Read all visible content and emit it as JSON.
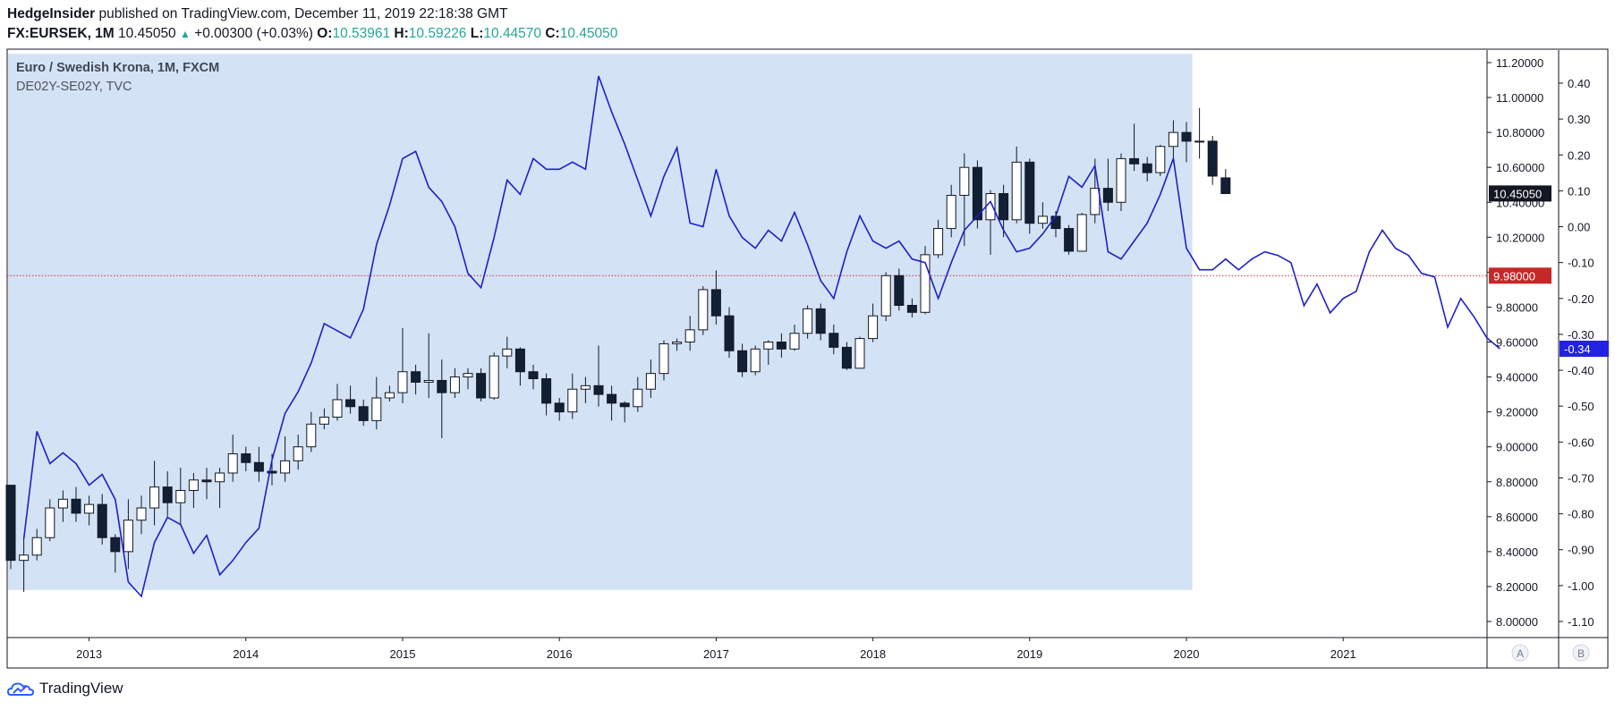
{
  "header": {
    "author": "HedgeInsider",
    "published_text": "published on TradingView.com, December 11, 2019 22:18:38 GMT",
    "symbol": "FX:EURSEK, 1M",
    "last": "10.45050",
    "change": "+0.00300 (+0.03%)",
    "o_label": "O:",
    "o_value": "10.53961",
    "h_label": "H:",
    "h_value": "10.59226",
    "l_label": "L:",
    "l_value": "10.44570",
    "c_label": "C:",
    "c_value": "10.45050"
  },
  "legend": {
    "main_series": "Euro / Swedish Krona, 1M, FXCM",
    "overlay_series": "DE02Y-SE02Y, TVC"
  },
  "brand": {
    "name": "TradingView"
  },
  "scale_buttons": {
    "a": "A",
    "b": "B"
  },
  "colors": {
    "highlight_band": "#d3e3f5",
    "candle_up_fill": "#ffffff",
    "candle_down_fill": "#131f35",
    "candle_outline": "#131722",
    "overlay_line": "#1f1fc8",
    "horizontal_line": "#d32f2f",
    "price_tag": "#131722",
    "hline_tag": "#c62828",
    "overlay_tag": "#2222e0"
  },
  "chart_data": {
    "type": "candlestick",
    "title": "Euro / Swedish Krona, 1M, FXCM",
    "x_axis_labels": [
      "2013",
      "2014",
      "2015",
      "2016",
      "2017",
      "2018",
      "2019",
      "2020",
      "2021"
    ],
    "right_axis_A": {
      "range": [
        7.95,
        11.3
      ],
      "ticks": [
        "11.20000",
        "11.00000",
        "10.80000",
        "10.60000",
        "10.40000",
        "10.20000",
        "10.00000",
        "9.80000",
        "9.60000",
        "9.40000",
        "9.20000",
        "9.00000",
        "8.80000",
        "8.60000",
        "8.40000",
        "8.20000",
        "8.00000"
      ]
    },
    "right_axis_B": {
      "range": [
        -1.15,
        0.45
      ],
      "ticks": [
        "0.40",
        "0.30",
        "0.20",
        "0.10",
        "0.00",
        "-0.10",
        "-0.20",
        "-0.30",
        "-0.40",
        "-0.50",
        "-0.60",
        "-0.70",
        "-0.80",
        "-0.90",
        "-1.00",
        "-1.10"
      ]
    },
    "price_tag": "10.45050",
    "horizontal_line": {
      "value": 9.98,
      "label": "9.98000"
    },
    "overlay_tag": "-0.34",
    "highlight_range": {
      "from": "2012-07",
      "to": "2020-02",
      "low": 8.18,
      "high": 11.25
    },
    "candles_start": "2012-07",
    "candles": [
      [
        8.78,
        8.35,
        8.78,
        8.3
      ],
      [
        8.35,
        8.38,
        8.48,
        8.17
      ],
      [
        8.38,
        8.48,
        8.53,
        8.35
      ],
      [
        8.48,
        8.65,
        8.7,
        8.46
      ],
      [
        8.65,
        8.7,
        8.75,
        8.57
      ],
      [
        8.7,
        8.62,
        8.77,
        8.57
      ],
      [
        8.62,
        8.67,
        8.72,
        8.55
      ],
      [
        8.67,
        8.48,
        8.73,
        8.44
      ],
      [
        8.48,
        8.4,
        8.5,
        8.28
      ],
      [
        8.4,
        8.58,
        8.7,
        8.3
      ],
      [
        8.58,
        8.65,
        8.72,
        8.5
      ],
      [
        8.65,
        8.77,
        8.92,
        8.55
      ],
      [
        8.77,
        8.68,
        8.86,
        8.6
      ],
      [
        8.68,
        8.75,
        8.88,
        8.55
      ],
      [
        8.75,
        8.81,
        8.85,
        8.65
      ],
      [
        8.81,
        8.8,
        8.88,
        8.7
      ],
      [
        8.8,
        8.85,
        8.88,
        8.65
      ],
      [
        8.85,
        8.96,
        9.07,
        8.8
      ],
      [
        8.96,
        8.91,
        9.0,
        8.86
      ],
      [
        8.91,
        8.86,
        9.0,
        8.8
      ],
      [
        8.86,
        8.85,
        8.96,
        8.78
      ],
      [
        8.85,
        8.92,
        9.06,
        8.8
      ],
      [
        8.92,
        9.0,
        9.07,
        8.87
      ],
      [
        9.0,
        9.13,
        9.2,
        8.97
      ],
      [
        9.13,
        9.17,
        9.22,
        9.1
      ],
      [
        9.17,
        9.27,
        9.36,
        9.15
      ],
      [
        9.27,
        9.23,
        9.35,
        9.19
      ],
      [
        9.23,
        9.15,
        9.27,
        9.12
      ],
      [
        9.15,
        9.28,
        9.4,
        9.1
      ],
      [
        9.28,
        9.31,
        9.35,
        9.26
      ],
      [
        9.31,
        9.43,
        9.68,
        9.25
      ],
      [
        9.43,
        9.37,
        9.47,
        9.3
      ],
      [
        9.37,
        9.38,
        9.65,
        9.28
      ],
      [
        9.38,
        9.31,
        9.5,
        9.05
      ],
      [
        9.31,
        9.4,
        9.45,
        9.28
      ],
      [
        9.4,
        9.42,
        9.45,
        9.33
      ],
      [
        9.42,
        9.28,
        9.45,
        9.26
      ],
      [
        9.28,
        9.52,
        9.54,
        9.27
      ],
      [
        9.52,
        9.56,
        9.63,
        9.45
      ],
      [
        9.56,
        9.43,
        9.57,
        9.35
      ],
      [
        9.43,
        9.39,
        9.47,
        9.33
      ],
      [
        9.39,
        9.25,
        9.42,
        9.18
      ],
      [
        9.25,
        9.2,
        9.28,
        9.15
      ],
      [
        9.2,
        9.33,
        9.42,
        9.16
      ],
      [
        9.33,
        9.35,
        9.4,
        9.25
      ],
      [
        9.35,
        9.3,
        9.58,
        9.23
      ],
      [
        9.3,
        9.25,
        9.35,
        9.15
      ],
      [
        9.25,
        9.23,
        9.26,
        9.14
      ],
      [
        9.23,
        9.33,
        9.4,
        9.2
      ],
      [
        9.33,
        9.42,
        9.5,
        9.28
      ],
      [
        9.42,
        9.59,
        9.61,
        9.38
      ],
      [
        9.59,
        9.6,
        9.62,
        9.55
      ],
      [
        9.6,
        9.67,
        9.75,
        9.55
      ],
      [
        9.67,
        9.9,
        9.92,
        9.64
      ],
      [
        9.9,
        9.75,
        10.01,
        9.7
      ],
      [
        9.75,
        9.55,
        9.8,
        9.51
      ],
      [
        9.55,
        9.43,
        9.59,
        9.4
      ],
      [
        9.43,
        9.56,
        9.58,
        9.41
      ],
      [
        9.56,
        9.6,
        9.61,
        9.47
      ],
      [
        9.6,
        9.56,
        9.65,
        9.51
      ],
      [
        9.56,
        9.65,
        9.7,
        9.55
      ],
      [
        9.65,
        9.79,
        9.81,
        9.62
      ],
      [
        9.79,
        9.65,
        9.82,
        9.61
      ],
      [
        9.65,
        9.57,
        9.7,
        9.53
      ],
      [
        9.57,
        9.45,
        9.6,
        9.44
      ],
      [
        9.45,
        9.62,
        9.63,
        9.45
      ],
      [
        9.62,
        9.75,
        9.82,
        9.6
      ],
      [
        9.75,
        9.98,
        10.0,
        9.72
      ],
      [
        9.98,
        9.81,
        10.02,
        9.78
      ],
      [
        9.81,
        9.77,
        9.85,
        9.74
      ],
      [
        9.77,
        10.1,
        10.15,
        9.76
      ],
      [
        10.1,
        10.25,
        10.3,
        10.08
      ],
      [
        10.25,
        10.44,
        10.5,
        10.2
      ],
      [
        10.44,
        10.6,
        10.68,
        10.15
      ],
      [
        10.6,
        10.3,
        10.64,
        10.25
      ],
      [
        10.3,
        10.45,
        10.47,
        10.1
      ],
      [
        10.45,
        10.3,
        10.5,
        10.2
      ],
      [
        10.3,
        10.63,
        10.72,
        10.28
      ],
      [
        10.63,
        10.28,
        10.65,
        10.22
      ],
      [
        10.28,
        10.32,
        10.4,
        10.25
      ],
      [
        10.32,
        10.25,
        10.35,
        10.2
      ],
      [
        10.25,
        10.12,
        10.27,
        10.1
      ],
      [
        10.12,
        10.33,
        10.34,
        10.13
      ],
      [
        10.33,
        10.48,
        10.65,
        10.28
      ],
      [
        10.48,
        10.4,
        10.65,
        10.35
      ],
      [
        10.4,
        10.65,
        10.68,
        10.35
      ],
      [
        10.65,
        10.62,
        10.85,
        10.58
      ],
      [
        10.62,
        10.57,
        10.66,
        10.52
      ],
      [
        10.57,
        10.72,
        10.73,
        10.55
      ],
      [
        10.72,
        10.8,
        10.87,
        10.65
      ],
      [
        10.8,
        10.75,
        10.86,
        10.63
      ],
      [
        10.75,
        10.75,
        10.94,
        10.65
      ],
      [
        10.75,
        10.55,
        10.78,
        10.5
      ],
      [
        10.54,
        10.45,
        10.59,
        10.45
      ]
    ],
    "overlay": {
      "name": "DE02Y-SE02Y, TVC",
      "start": "2012-08",
      "values": [
        -0.87,
        -0.57,
        -0.66,
        -0.63,
        -0.66,
        -0.72,
        -0.69,
        -0.76,
        -0.99,
        -1.03,
        -0.88,
        -0.81,
        -0.83,
        -0.91,
        -0.86,
        -0.97,
        -0.93,
        -0.88,
        -0.84,
        -0.65,
        -0.52,
        -0.46,
        -0.38,
        -0.27,
        -0.29,
        -0.31,
        -0.23,
        -0.05,
        0.06,
        0.19,
        0.21,
        0.11,
        0.07,
        0.0,
        -0.13,
        -0.17,
        -0.03,
        0.13,
        0.09,
        0.19,
        0.16,
        0.16,
        0.18,
        0.16,
        0.42,
        0.32,
        0.23,
        0.13,
        0.03,
        0.14,
        0.22,
        0.01,
        0.0,
        0.16,
        0.03,
        -0.03,
        -0.06,
        -0.01,
        -0.04,
        0.04,
        -0.05,
        -0.15,
        -0.2,
        -0.07,
        0.03,
        -0.04,
        -0.06,
        -0.04,
        -0.09,
        -0.1,
        -0.2,
        -0.1,
        -0.01,
        0.03,
        0.07,
        -0.01,
        -0.07,
        -0.06,
        -0.02,
        0.03,
        0.14,
        0.11,
        0.17,
        -0.07,
        -0.09,
        -0.04,
        0.01,
        0.09,
        0.19,
        -0.06,
        -0.12,
        -0.12,
        -0.09,
        -0.12,
        -0.09,
        -0.07,
        -0.08,
        -0.1,
        -0.22,
        -0.16,
        -0.24,
        -0.2,
        -0.18,
        -0.07,
        -0.01,
        -0.06,
        -0.08,
        -0.13,
        -0.14,
        -0.28,
        -0.2,
        -0.25,
        -0.31,
        -0.34
      ]
    }
  }
}
